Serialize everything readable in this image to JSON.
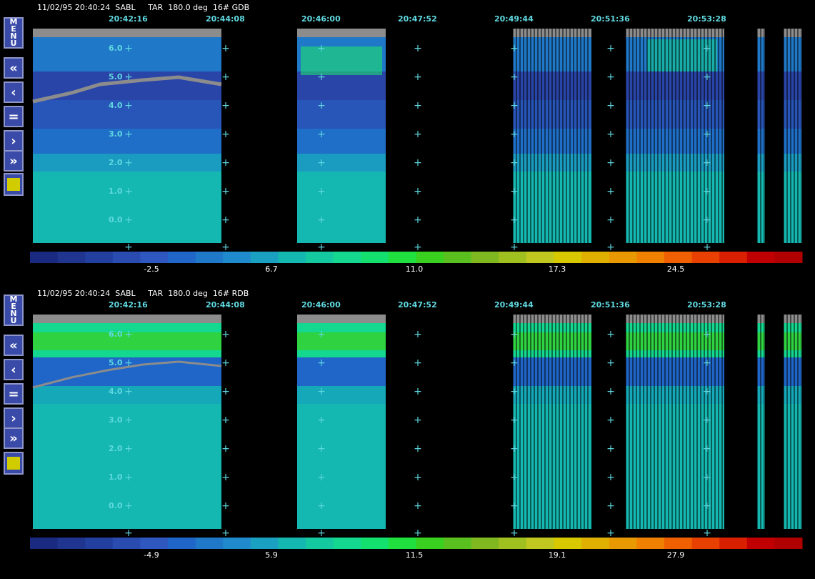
{
  "panels": [
    {
      "header": "11/02/95 20:40:24  SABL     TAR  180.0 deg  16# GDB",
      "time_labels": [
        "20:42:16",
        "20:44:08",
        "20:46:00",
        "20:47:52",
        "20:49:44",
        "20:51:36",
        "20:53:28"
      ],
      "y_labels": [
        "6.0",
        "5.0",
        "4.0",
        "3.0",
        "2.0",
        "1.0",
        "0.0"
      ],
      "colorbar_ticks": [
        "-2.5",
        "6.7",
        "11.0",
        "17.3",
        "24.5"
      ]
    },
    {
      "header": "11/02/95 20:40:24  SABL     TAR  180.0 deg  16# RDB",
      "time_labels": [
        "20:42:16",
        "20:44:08",
        "20:46:00",
        "20:47:52",
        "20:49:44",
        "20:51:36",
        "20:53:28"
      ],
      "y_labels": [
        "6.0",
        "5.0",
        "4.0",
        "3.0",
        "2.0",
        "1.0",
        "0.0"
      ],
      "colorbar_ticks": [
        "-4.9",
        "5.9",
        "11.5",
        "19.1",
        "27.9"
      ]
    }
  ],
  "toolbar": {
    "menu_label": "MENU",
    "buttons": [
      "«",
      "‹",
      "=",
      "›",
      "»"
    ],
    "swatch_color": "#d0cc00"
  },
  "colors": {
    "label": "#5fd8e0",
    "missing": "#8c8c8c",
    "colorbar": [
      "#1a2a80",
      "#1f3590",
      "#2340a0",
      "#2a4bb0",
      "#2f57c0",
      "#1f66c8",
      "#1f78c8",
      "#1f8acc",
      "#1aa0c0",
      "#14b8b0",
      "#14c8a0",
      "#14d890",
      "#14e070",
      "#20e040",
      "#3ad020",
      "#5ac020",
      "#80b820",
      "#a0c020",
      "#c0c820",
      "#d8c800",
      "#e0b000",
      "#e89800",
      "#f08000",
      "#f06000",
      "#e84000",
      "#d82000",
      "#c00000",
      "#b00000"
    ]
  }
}
